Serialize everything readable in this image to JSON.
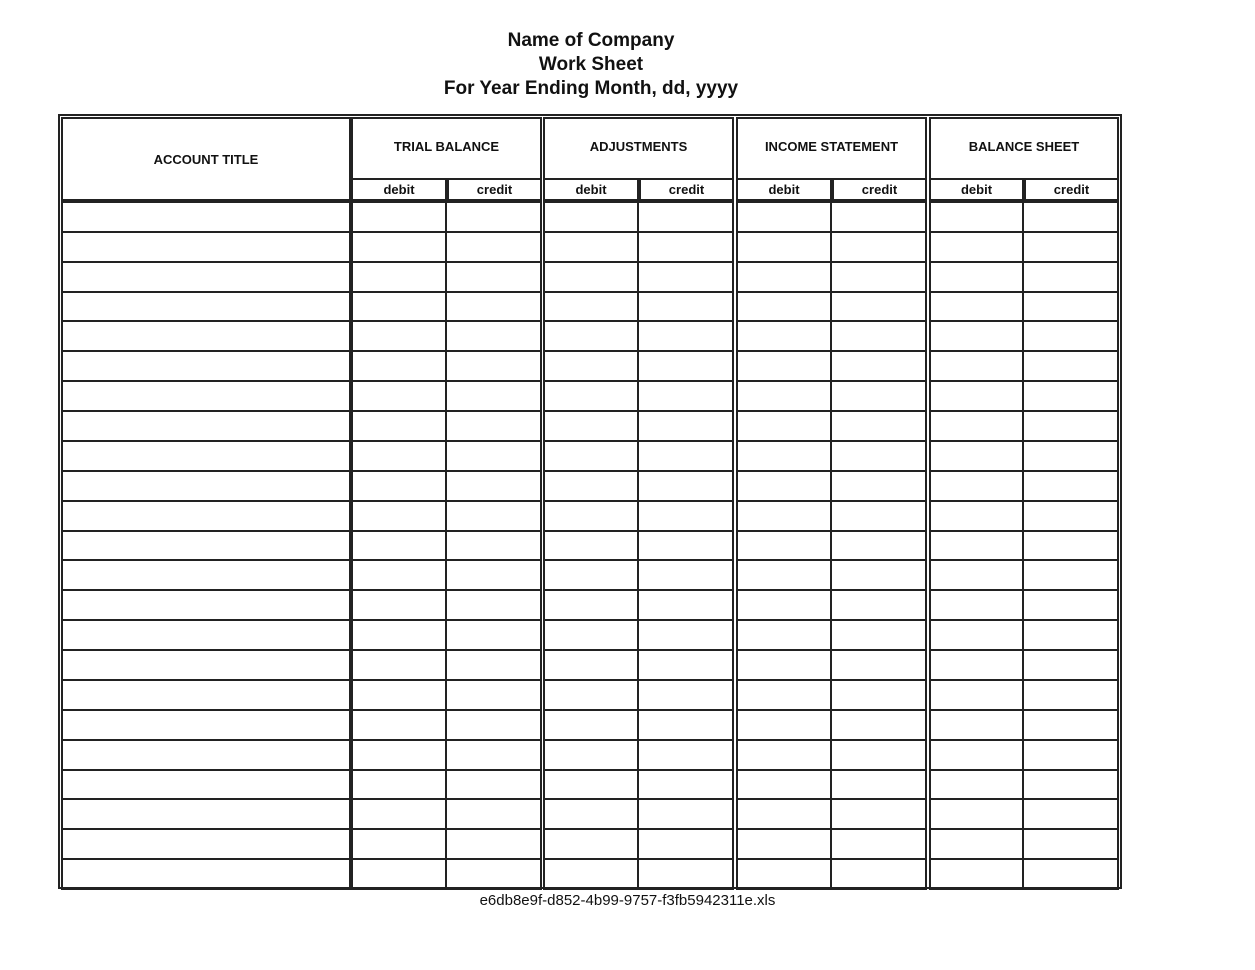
{
  "header": {
    "company": "Name of Company",
    "sheet": "Work Sheet",
    "period": "For Year Ending Month, dd, yyyy"
  },
  "table": {
    "account_title": "ACCOUNT TITLE",
    "groups": [
      {
        "label": "TRIAL BALANCE",
        "debit": "debit",
        "credit": "credit"
      },
      {
        "label": "ADJUSTMENTS",
        "debit": "debit",
        "credit": "credit"
      },
      {
        "label": "INCOME STATEMENT",
        "debit": "debit",
        "credit": "credit"
      },
      {
        "label": "BALANCE SHEET",
        "debit": "debit",
        "credit": "credit"
      }
    ]
  },
  "footer": {
    "filename": "e6db8e9f-d852-4b99-9757-f3fb5942311e.xls"
  }
}
